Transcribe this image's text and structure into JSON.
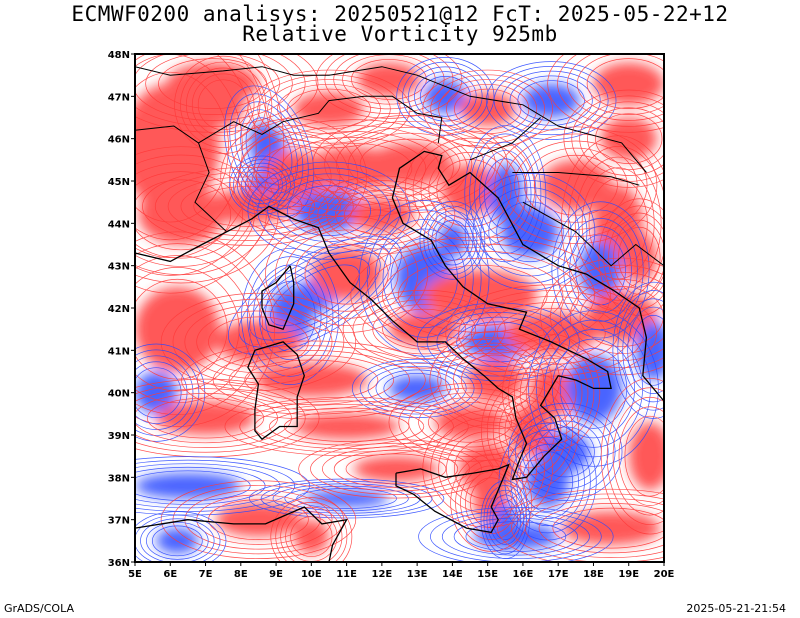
{
  "title": {
    "line1": "ECMWF0200 analisys: 20250521@12 FcT: 2025-05-22+12",
    "line2": "Relative Vorticity 925mb"
  },
  "axes": {
    "lon_range": [
      5,
      20
    ],
    "lat_range": [
      36,
      48
    ],
    "lon_ticks": [
      "5E",
      "6E",
      "7E",
      "8E",
      "9E",
      "10E",
      "11E",
      "12E",
      "13E",
      "14E",
      "15E",
      "16E",
      "17E",
      "18E",
      "19E",
      "20E"
    ],
    "lat_ticks": [
      "36N",
      "37N",
      "38N",
      "39N",
      "40N",
      "41N",
      "42N",
      "43N",
      "44N",
      "45N",
      "46N",
      "47N",
      "48N"
    ]
  },
  "colors": {
    "positive_vorticity": "#ff3a3a",
    "negative_vorticity": "#2b48ff",
    "coastline": "#000000",
    "frame": "#000000"
  },
  "footer": {
    "left": "GrADS/COLA",
    "right": "2025-05-21-21:54"
  }
}
